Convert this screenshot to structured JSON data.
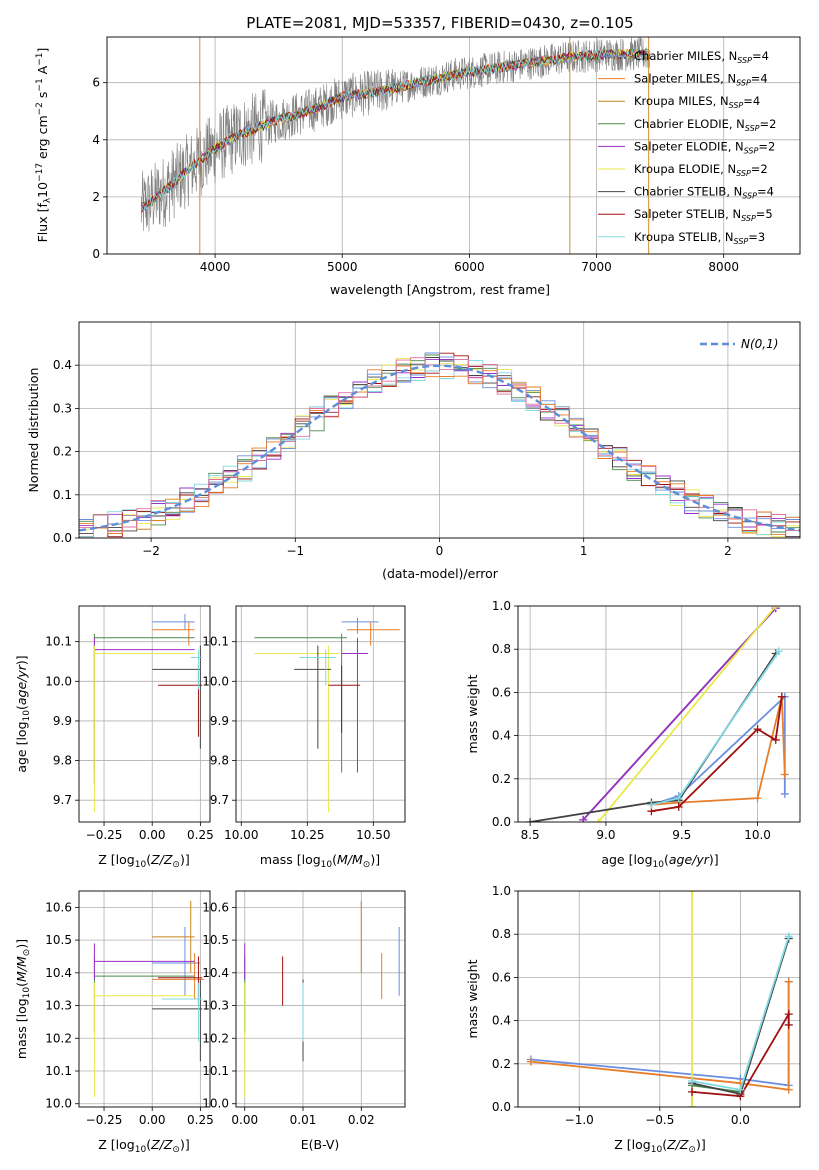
{
  "figure_title": "PLATE=2081, MJD=53357, FIBERID=0430, z=0.105",
  "colors": {
    "Chabrier MILES": "#6a8ee0",
    "Salpeter MILES": "#e87d2a",
    "Kroupa MILES": "#c8841c",
    "Chabrier ELODIE": "#4a8a4a",
    "Salpeter ELODIE": "#9b30c8",
    "Kroupa ELODIE": "#e8e84a",
    "Chabrier STELIB": "#444444",
    "Salpeter STELIB": "#a01010",
    "Kroupa STELIB": "#80d8e0",
    "data": "#808080",
    "normal": "#5b8fd8"
  },
  "chart_data": [
    {
      "id": "spectrum",
      "type": "line",
      "title": "PLATE=2081, MJD=53357, FIBERID=0430, z=0.105",
      "xlabel": "wavelength [Angstrom, rest frame]",
      "ylabel": "Flux [f_λ 10^-17 erg cm^-2 s^-1 A^-1]",
      "xlim": [
        3150,
        8600
      ],
      "ylim": [
        0,
        7.6
      ],
      "xticks": [
        4000,
        5000,
        6000,
        7000,
        8000
      ],
      "yticks": [
        0,
        2,
        4,
        6
      ],
      "legend_loc": "upper right",
      "legend": [
        {
          "base": "Chabrier MILES, N",
          "sub": "SSP",
          "tail": "=4"
        },
        {
          "base": "Salpeter MILES, N",
          "sub": "SSP",
          "tail": "=4"
        },
        {
          "base": "Kroupa MILES, N",
          "sub": "SSP",
          "tail": "=4"
        },
        {
          "base": "Chabrier ELODIE, N",
          "sub": "SSP",
          "tail": "=2"
        },
        {
          "base": "Salpeter ELODIE, N",
          "sub": "SSP",
          "tail": "=2"
        },
        {
          "base": "Kroupa ELODIE, N",
          "sub": "SSP",
          "tail": "=2"
        },
        {
          "base": "Chabrier STELIB, N",
          "sub": "SSP",
          "tail": "=4"
        },
        {
          "base": "Salpeter STELIB, N",
          "sub": "SSP",
          "tail": "=5"
        },
        {
          "base": "Kroupa STELIB, N",
          "sub": "SSP",
          "tail": "=3"
        }
      ],
      "continuum": {
        "x": [
          3420,
          3600,
          3800,
          4000,
          4200,
          4500,
          4800,
          5000,
          5300,
          5600,
          5900,
          6200,
          6500,
          6800,
          7100,
          7400
        ],
        "y": [
          1.6,
          2.2,
          3.0,
          3.7,
          4.2,
          4.7,
          5.1,
          5.5,
          5.7,
          6.0,
          6.3,
          6.5,
          6.7,
          6.9,
          7.0,
          7.0
        ]
      },
      "data_xrange": [
        3420,
        7420
      ],
      "gap_lines_x": [
        3880,
        6790,
        7410
      ]
    },
    {
      "id": "residuals",
      "type": "histogram",
      "xlabel": "(data-model)/error",
      "ylabel": "Normed distribution",
      "xlim": [
        -2.5,
        2.5
      ],
      "ylim": [
        0,
        0.5
      ],
      "xticks": [
        -2,
        -1,
        0,
        1,
        2
      ],
      "yticks": [
        0.0,
        0.1,
        0.2,
        0.3,
        0.4
      ],
      "legend": "N(0,1)",
      "legend_loc": "upper right",
      "grid": true
    },
    {
      "id": "age_vs_Z",
      "type": "errorbar",
      "xlabel": "Z [log10(Z/Z⊙)]",
      "ylabel": "age [log10(age/yr)]",
      "xlim": [
        -0.38,
        0.3
      ],
      "ylim": [
        9.645,
        10.19
      ],
      "xticks": [
        -0.25,
        0.0,
        0.25
      ],
      "yticks": [
        9.7,
        9.8,
        9.9,
        10.0,
        10.1
      ],
      "points": [
        {
          "s": "Chabrier MILES",
          "x": 0.17,
          "y": 10.15,
          "xlo": 0.0,
          "xhi": 0.22,
          "ylo": 10.13,
          "yhi": 10.17
        },
        {
          "s": "Salpeter MILES",
          "x": 0.19,
          "y": 10.13,
          "xlo": 0.0,
          "xhi": 0.22,
          "ylo": 10.09,
          "yhi": 10.15
        },
        {
          "s": "Chabrier ELODIE",
          "x": -0.3,
          "y": 10.11,
          "xlo": -0.3,
          "xhi": 0.22,
          "ylo": 9.77,
          "yhi": 10.12
        },
        {
          "s": "Salpeter ELODIE",
          "x": -0.3,
          "y": 10.08,
          "xlo": -0.3,
          "xhi": 0.22,
          "ylo": 9.74,
          "yhi": 10.11
        },
        {
          "s": "Kroupa ELODIE",
          "x": -0.3,
          "y": 10.07,
          "xlo": -0.3,
          "xhi": 0.22,
          "ylo": 9.67,
          "yhi": 10.09
        },
        {
          "s": "Chabrier STELIB",
          "x": 0.25,
          "y": 10.03,
          "xlo": 0.0,
          "xhi": 0.25,
          "ylo": 9.83,
          "yhi": 10.09
        },
        {
          "s": "Salpeter STELIB",
          "x": 0.24,
          "y": 9.99,
          "xlo": 0.03,
          "xhi": 0.26,
          "ylo": 9.86,
          "yhi": 10.04
        },
        {
          "s": "Kroupa STELIB",
          "x": 0.24,
          "y": 10.06,
          "xlo": 0.2,
          "xhi": 0.26,
          "ylo": 9.98,
          "yhi": 10.08
        }
      ]
    },
    {
      "id": "age_vs_mass",
      "type": "errorbar",
      "xlabel": "mass [log10(M/M⊙)]",
      "ylabel": "",
      "xlim": [
        9.98,
        10.62
      ],
      "ylim": [
        9.645,
        10.19
      ],
      "xticks": [
        10.0,
        10.25,
        10.5
      ],
      "yticks": [
        9.7,
        9.8,
        9.9,
        10.0,
        10.1
      ],
      "points": [
        {
          "s": "Chabrier MILES",
          "x": 10.44,
          "y": 10.15,
          "xlo": 10.38,
          "xhi": 10.52,
          "ylo": 10.12,
          "yhi": 10.16
        },
        {
          "s": "Salpeter MILES",
          "x": 10.49,
          "y": 10.13,
          "xlo": 10.4,
          "xhi": 10.6,
          "ylo": 10.09,
          "yhi": 10.15
        },
        {
          "s": "Chabrier ELODIE",
          "x": 10.38,
          "y": 10.11,
          "xlo": 10.05,
          "xhi": 10.4,
          "ylo": 9.77,
          "yhi": 10.12
        },
        {
          "s": "Salpeter ELODIE",
          "x": 10.44,
          "y": 10.07,
          "xlo": 10.38,
          "xhi": 10.48,
          "ylo": 9.77,
          "yhi": 10.11
        },
        {
          "s": "Kroupa ELODIE",
          "x": 10.33,
          "y": 10.07,
          "xlo": 10.05,
          "xhi": 10.37,
          "ylo": 9.67,
          "yhi": 10.09
        },
        {
          "s": "Chabrier STELIB",
          "x": 10.29,
          "y": 10.03,
          "xlo": 10.2,
          "xhi": 10.34,
          "ylo": 9.83,
          "yhi": 10.09
        },
        {
          "s": "Salpeter STELIB",
          "x": 10.38,
          "y": 9.99,
          "xlo": 10.33,
          "xhi": 10.45,
          "ylo": 9.87,
          "yhi": 10.04
        },
        {
          "s": "Kroupa STELIB",
          "x": 10.32,
          "y": 10.06,
          "xlo": 10.22,
          "xhi": 10.36,
          "ylo": 9.99,
          "yhi": 10.08
        }
      ]
    },
    {
      "id": "massweight_vs_age",
      "type": "line",
      "xlabel": "age [log10(age/yr)]",
      "ylabel": "mass weight",
      "xlim": [
        8.42,
        10.28
      ],
      "ylim": [
        0,
        1.0
      ],
      "xticks": [
        8.5,
        9.0,
        9.5,
        10.0
      ],
      "yticks": [
        0.0,
        0.2,
        0.4,
        0.6,
        0.8,
        1.0
      ],
      "grid": true,
      "series": [
        {
          "s": "Chabrier MILES",
          "x": [
            9.3,
            9.48,
            10.18,
            10.18
          ],
          "y": [
            0.08,
            0.12,
            0.58,
            0.13
          ]
        },
        {
          "s": "Salpeter MILES",
          "x": [
            9.3,
            9.48,
            10.0,
            10.16,
            10.18
          ],
          "y": [
            0.08,
            0.09,
            0.11,
            0.58,
            0.22
          ]
        },
        {
          "s": "Chabrier ELODIE",
          "x": [
            8.85,
            10.12
          ],
          "y": [
            0.01,
            0.99
          ]
        },
        {
          "s": "Salpeter ELODIE",
          "x": [
            8.85,
            10.12
          ],
          "y": [
            0.01,
            0.99
          ]
        },
        {
          "s": "Kroupa ELODIE",
          "x": [
            8.95,
            10.12
          ],
          "y": [
            0.0,
            1.0
          ]
        },
        {
          "s": "Chabrier STELIB",
          "x": [
            8.5,
            9.3,
            9.48,
            10.12
          ],
          "y": [
            0.0,
            0.09,
            0.1,
            0.78
          ]
        },
        {
          "s": "Salpeter STELIB",
          "x": [
            9.3,
            9.48,
            10.0,
            10.12,
            10.16
          ],
          "y": [
            0.05,
            0.07,
            0.43,
            0.38,
            0.58
          ]
        },
        {
          "s": "Kroupa STELIB",
          "x": [
            9.3,
            9.48,
            10.14
          ],
          "y": [
            0.08,
            0.11,
            0.79
          ]
        }
      ]
    },
    {
      "id": "mass_vs_Z",
      "type": "errorbar",
      "xlabel": "Z [log10(Z/Z⊙)]",
      "ylabel": "mass [log10(M/M⊙)]",
      "xlim": [
        -0.38,
        0.3
      ],
      "ylim": [
        9.99,
        10.65
      ],
      "xticks": [
        -0.25,
        0.0,
        0.25
      ],
      "yticks": [
        10.0,
        10.1,
        10.2,
        10.3,
        10.4,
        10.5,
        10.6
      ],
      "points": [
        {
          "s": "Chabrier MILES",
          "x": 0.17,
          "y": 10.43,
          "xlo": 0.0,
          "xhi": 0.25,
          "ylo": 10.33,
          "yhi": 10.54
        },
        {
          "s": "Salpeter MILES",
          "x": 0.22,
          "y": 10.38,
          "xlo": 0.0,
          "xhi": 0.27,
          "ylo": 10.32,
          "yhi": 10.46
        },
        {
          "s": "Kroupa MILES",
          "x": 0.2,
          "y": 10.51,
          "xlo": 0.0,
          "xhi": 0.22,
          "ylo": 10.4,
          "yhi": 10.62
        },
        {
          "s": "Chabrier ELODIE",
          "x": -0.3,
          "y": 10.39,
          "xlo": -0.3,
          "xhi": 0.22,
          "ylo": 10.22,
          "yhi": 10.45
        },
        {
          "s": "Salpeter ELODIE",
          "x": -0.3,
          "y": 10.435,
          "xlo": -0.3,
          "xhi": 0.22,
          "ylo": 10.38,
          "yhi": 10.49
        },
        {
          "s": "Kroupa ELODIE",
          "x": -0.3,
          "y": 10.33,
          "xlo": -0.3,
          "xhi": 0.22,
          "ylo": 10.02,
          "yhi": 10.37
        },
        {
          "s": "Chabrier STELIB",
          "x": 0.25,
          "y": 10.29,
          "xlo": 0.0,
          "xhi": 0.26,
          "ylo": 10.13,
          "yhi": 10.38
        },
        {
          "s": "Salpeter STELIB",
          "x": 0.24,
          "y": 10.385,
          "xlo": 0.03,
          "xhi": 0.26,
          "ylo": 10.3,
          "yhi": 10.45
        },
        {
          "s": "Kroupa STELIB",
          "x": 0.24,
          "y": 10.32,
          "xlo": 0.05,
          "xhi": 0.26,
          "ylo": 10.19,
          "yhi": 10.37
        }
      ]
    },
    {
      "id": "mass_vs_EBV",
      "type": "errorbar",
      "xlabel": "E(B-V)",
      "ylabel": "",
      "xlim": [
        -0.0015,
        0.0275
      ],
      "ylim": [
        9.99,
        10.65
      ],
      "xticks": [
        0.0,
        0.01,
        0.02
      ],
      "yticks": [
        10.0,
        10.1,
        10.2,
        10.3,
        10.4,
        10.5,
        10.6
      ],
      "points": [
        {
          "s": "Chabrier MILES",
          "x": 0.0265,
          "y": 10.43,
          "ylo": 10.33,
          "yhi": 10.54
        },
        {
          "s": "Salpeter MILES",
          "x": 0.0235,
          "y": 10.38,
          "ylo": 10.32,
          "yhi": 10.46
        },
        {
          "s": "Kroupa MILES",
          "x": 0.02,
          "y": 10.51,
          "ylo": 10.4,
          "yhi": 10.62
        },
        {
          "s": "Chabrier ELODIE",
          "x": 0.0,
          "y": 10.39,
          "ylo": 10.22,
          "yhi": 10.45
        },
        {
          "s": "Salpeter ELODIE",
          "x": 0.0,
          "y": 10.435,
          "ylo": 10.38,
          "yhi": 10.49
        },
        {
          "s": "Kroupa ELODIE",
          "x": 0.0,
          "y": 10.33,
          "ylo": 10.02,
          "yhi": 10.37
        },
        {
          "s": "Chabrier STELIB",
          "x": 0.01,
          "y": 10.29,
          "ylo": 10.13,
          "yhi": 10.38
        },
        {
          "s": "Salpeter STELIB",
          "x": 0.0065,
          "y": 10.385,
          "ylo": 10.3,
          "yhi": 10.45
        },
        {
          "s": "Kroupa STELIB",
          "x": 0.01,
          "y": 10.32,
          "ylo": 10.19,
          "yhi": 10.37
        }
      ]
    },
    {
      "id": "massweight_vs_Z",
      "type": "line",
      "xlabel": "Z [log10(Z/Z⊙)]",
      "ylabel": "mass weight",
      "xlim": [
        -1.38,
        0.37
      ],
      "ylim": [
        0,
        1.0
      ],
      "xticks": [
        -1.0,
        -0.5,
        0.0
      ],
      "yticks": [
        0.0,
        0.2,
        0.4,
        0.6,
        0.8,
        1.0
      ],
      "grid": true,
      "series": [
        {
          "s": "Chabrier MILES",
          "x": [
            -1.3,
            0.0,
            0.3,
            0.3
          ],
          "y": [
            0.22,
            0.13,
            0.1,
            0.58
          ]
        },
        {
          "s": "Salpeter MILES",
          "x": [
            -1.3,
            0.0,
            0.3,
            0.3
          ],
          "y": [
            0.21,
            0.11,
            0.08,
            0.58
          ]
        },
        {
          "s": "Chabrier ELODIE",
          "x": [
            -0.3,
            -0.3,
            0.0,
            0.3
          ],
          "y": [
            0.0,
            0.1,
            0.07,
            0.78
          ]
        },
        {
          "s": "Kroupa ELODIE",
          "x": [
            -0.3,
            -0.3
          ],
          "y": [
            0.0,
            1.0
          ]
        },
        {
          "s": "Chabrier STELIB",
          "x": [
            -0.3,
            0.0,
            0.3
          ],
          "y": [
            0.11,
            0.06,
            0.78
          ]
        },
        {
          "s": "Salpeter STELIB",
          "x": [
            -0.3,
            0.0,
            0.3,
            0.3
          ],
          "y": [
            0.07,
            0.05,
            0.43,
            0.38
          ]
        },
        {
          "s": "Kroupa STELIB",
          "x": [
            -0.3,
            0.0,
            0.3
          ],
          "y": [
            0.12,
            0.08,
            0.79
          ]
        }
      ]
    }
  ]
}
